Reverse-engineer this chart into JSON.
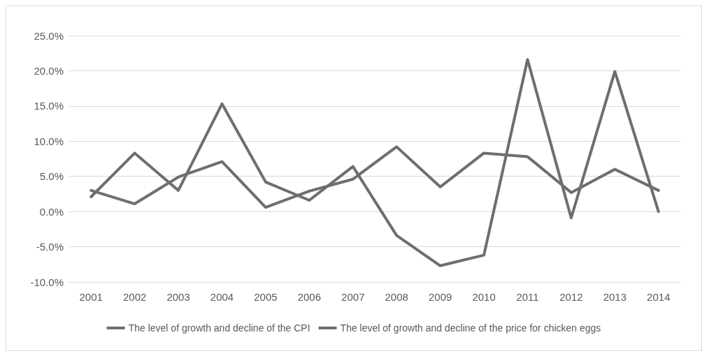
{
  "chart_data": {
    "type": "line",
    "categories": [
      "2001",
      "2002",
      "2003",
      "2004",
      "2005",
      "2006",
      "2007",
      "2008",
      "2009",
      "2010",
      "2011",
      "2012",
      "2013",
      "2014"
    ],
    "series": [
      {
        "name": "The level of growth and decline of the CPI",
        "color": "#6e6e6e",
        "values": [
          3.0,
          1.1,
          4.9,
          7.1,
          0.6,
          2.9,
          4.6,
          9.2,
          3.5,
          8.3,
          7.8,
          2.7,
          6.0,
          3.0
        ]
      },
      {
        "name": "The level of growth and decline of the price for chicken eggs",
        "color": "#6e6e6e",
        "values": [
          2.1,
          8.3,
          3.0,
          15.3,
          4.2,
          1.6,
          6.4,
          -3.4,
          -7.7,
          -6.2,
          21.6,
          -0.9,
          19.9,
          0.0
        ]
      }
    ],
    "ylim": [
      -10,
      25
    ],
    "yticks": [
      {
        "value": -10,
        "label": "-10.0%"
      },
      {
        "value": -5,
        "label": "-5.0%"
      },
      {
        "value": 0,
        "label": "0.0%"
      },
      {
        "value": 5,
        "label": "5.0%"
      },
      {
        "value": 10,
        "label": "10.0%"
      },
      {
        "value": 15,
        "label": "15.0%"
      },
      {
        "value": 20,
        "label": "20.0%"
      },
      {
        "value": 25,
        "label": "25.0%"
      }
    ],
    "grid": "y",
    "legend": "bottom",
    "marker": "none",
    "line_style": "solid"
  }
}
